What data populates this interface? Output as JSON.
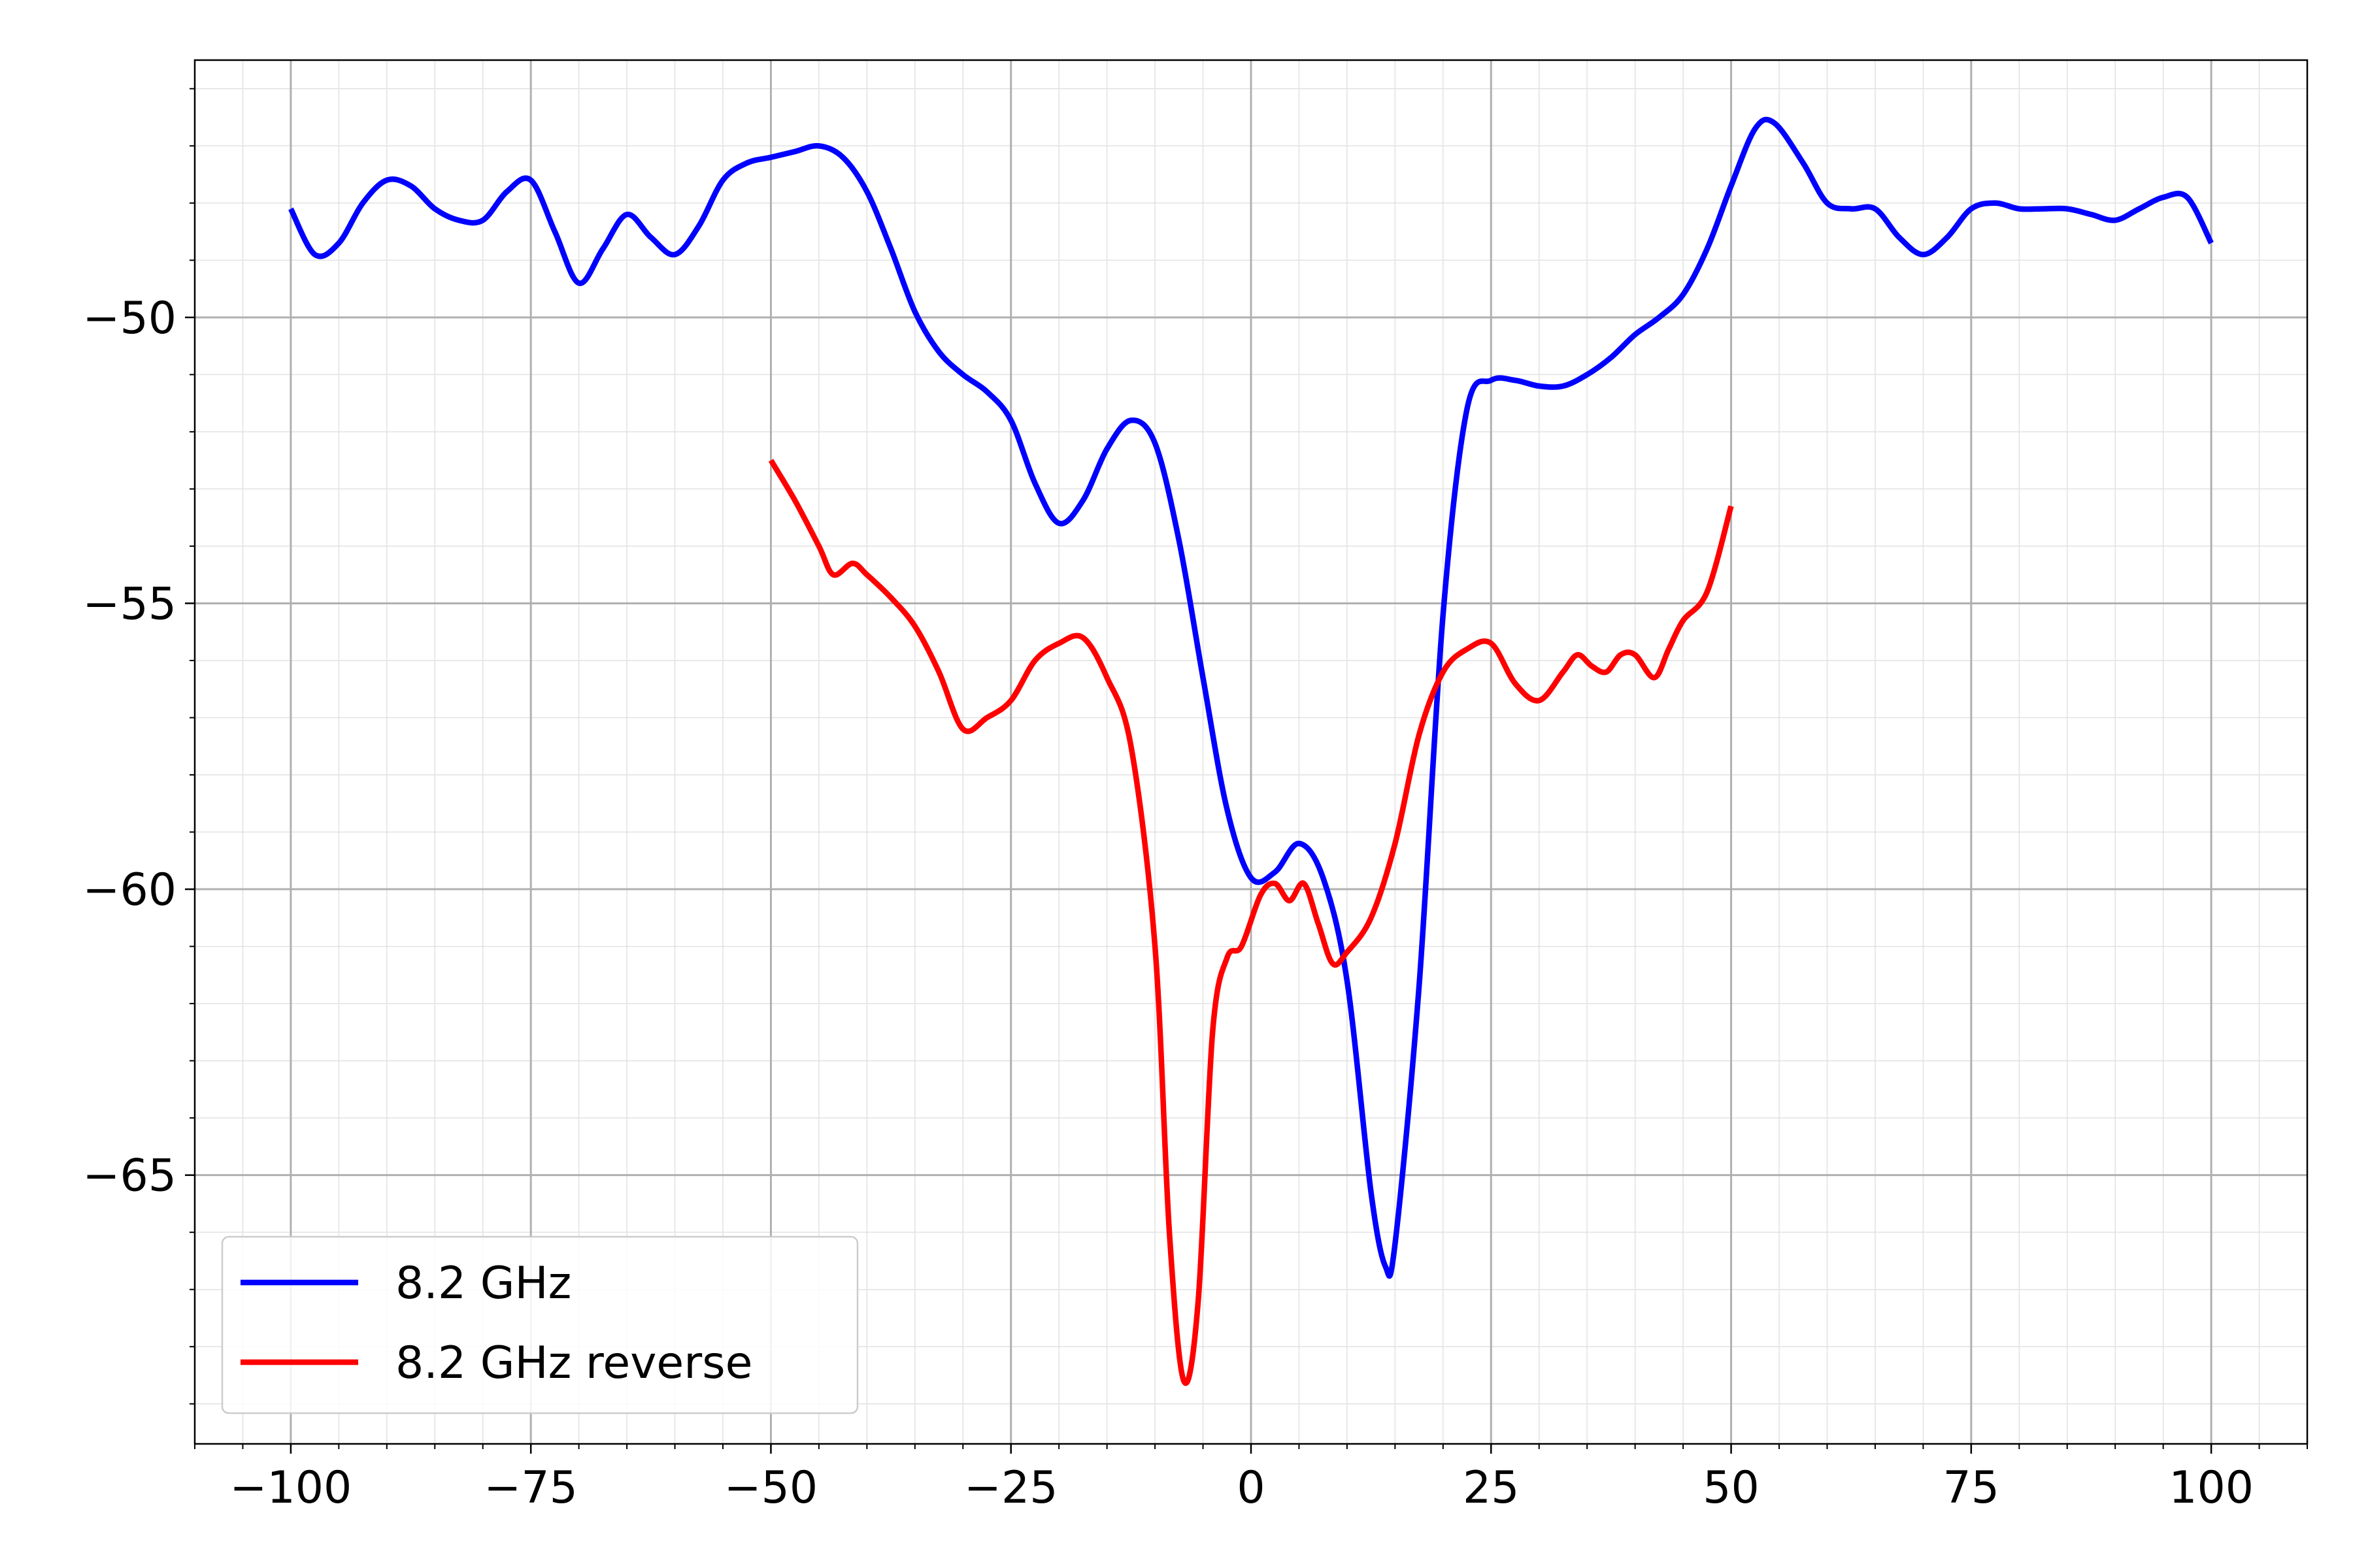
{
  "chart_data": {
    "type": "line",
    "title": "",
    "xlabel": "",
    "ylabel": "",
    "xlim": [
      -110,
      110
    ],
    "ylim": [
      -69.7,
      -45.5
    ],
    "x_ticks": [
      -100,
      -75,
      -50,
      -25,
      0,
      25,
      50,
      75,
      100
    ],
    "x_tick_labels": [
      "−100",
      "−75",
      "−50",
      "−25",
      "0",
      "25",
      "50",
      "75",
      "100"
    ],
    "y_ticks": [
      -50,
      -55,
      -60,
      -65
    ],
    "y_tick_labels": [
      "−50",
      "−55",
      "−60",
      "−65"
    ],
    "grid": {
      "major": true,
      "minor": true
    },
    "legend_position": "lower-left",
    "series": [
      {
        "name": "8.2 GHz",
        "color": "#0000ff",
        "points": [
          [
            -100,
            -48.1
          ],
          [
            -97.5,
            -48.9
          ],
          [
            -95,
            -48.7
          ],
          [
            -92.5,
            -48.0
          ],
          [
            -90,
            -47.6
          ],
          [
            -87.5,
            -47.7
          ],
          [
            -85,
            -48.1
          ],
          [
            -82.5,
            -48.3
          ],
          [
            -80,
            -48.3
          ],
          [
            -77.5,
            -47.8
          ],
          [
            -75,
            -47.6
          ],
          [
            -72.5,
            -48.5
          ],
          [
            -70,
            -49.4
          ],
          [
            -67.5,
            -48.8
          ],
          [
            -65,
            -48.2
          ],
          [
            -62.5,
            -48.6
          ],
          [
            -60,
            -48.9
          ],
          [
            -57.5,
            -48.4
          ],
          [
            -55,
            -47.6
          ],
          [
            -52.5,
            -47.3
          ],
          [
            -50,
            -47.2
          ],
          [
            -47.5,
            -47.1
          ],
          [
            -45,
            -47.0
          ],
          [
            -42.5,
            -47.2
          ],
          [
            -40,
            -47.8
          ],
          [
            -37.5,
            -48.8
          ],
          [
            -35,
            -49.9
          ],
          [
            -32.5,
            -50.6
          ],
          [
            -30,
            -51.0
          ],
          [
            -27.5,
            -51.3
          ],
          [
            -25,
            -51.8
          ],
          [
            -22.5,
            -52.9
          ],
          [
            -20,
            -53.6
          ],
          [
            -17.5,
            -53.2
          ],
          [
            -15,
            -52.3
          ],
          [
            -12.5,
            -51.8
          ],
          [
            -10,
            -52.2
          ],
          [
            -7.5,
            -53.9
          ],
          [
            -5,
            -56.3
          ],
          [
            -2.5,
            -58.6
          ],
          [
            0,
            -59.8
          ],
          [
            2.5,
            -59.7
          ],
          [
            5,
            -59.2
          ],
          [
            7.5,
            -59.8
          ],
          [
            10,
            -61.6
          ],
          [
            12.5,
            -65.3
          ],
          [
            14,
            -66.6
          ],
          [
            15,
            -66.2
          ],
          [
            17.5,
            -61.7
          ],
          [
            20,
            -55.2
          ],
          [
            22.5,
            -51.6
          ],
          [
            25,
            -51.1
          ],
          [
            27.5,
            -51.1
          ],
          [
            30,
            -51.2
          ],
          [
            32.5,
            -51.2
          ],
          [
            35,
            -51.0
          ],
          [
            37.5,
            -50.7
          ],
          [
            40,
            -50.3
          ],
          [
            42.5,
            -50.0
          ],
          [
            45,
            -49.6
          ],
          [
            47.5,
            -48.8
          ],
          [
            50,
            -47.7
          ],
          [
            52.5,
            -46.7
          ],
          [
            54.5,
            -46.6
          ],
          [
            57.5,
            -47.3
          ],
          [
            60,
            -48.0
          ],
          [
            62.5,
            -48.1
          ],
          [
            65,
            -48.1
          ],
          [
            67.5,
            -48.6
          ],
          [
            70,
            -48.9
          ],
          [
            72.5,
            -48.6
          ],
          [
            75,
            -48.1
          ],
          [
            77.5,
            -48.0
          ],
          [
            80,
            -48.1
          ],
          [
            82.5,
            -48.1
          ],
          [
            85,
            -48.1
          ],
          [
            87.5,
            -48.2
          ],
          [
            90,
            -48.3
          ],
          [
            92.5,
            -48.1
          ],
          [
            95,
            -47.9
          ],
          [
            97.5,
            -47.9
          ],
          [
            100,
            -48.7
          ]
        ]
      },
      {
        "name": "8.2 GHz reverse",
        "color": "#ff0000",
        "points": [
          [
            -50,
            -52.5
          ],
          [
            -47.5,
            -53.2
          ],
          [
            -45,
            -54.0
          ],
          [
            -43.5,
            -54.5
          ],
          [
            -41.5,
            -54.3
          ],
          [
            -40,
            -54.5
          ],
          [
            -37.5,
            -54.9
          ],
          [
            -35,
            -55.4
          ],
          [
            -32.5,
            -56.2
          ],
          [
            -30,
            -57.2
          ],
          [
            -27.5,
            -57.0
          ],
          [
            -25,
            -56.7
          ],
          [
            -22.5,
            -56.0
          ],
          [
            -20,
            -55.7
          ],
          [
            -17.5,
            -55.6
          ],
          [
            -15,
            -56.3
          ],
          [
            -12.5,
            -57.5
          ],
          [
            -10,
            -61.0
          ],
          [
            -8.5,
            -66.0
          ],
          [
            -7,
            -68.6
          ],
          [
            -5.5,
            -67.2
          ],
          [
            -4,
            -62.5
          ],
          [
            -2.5,
            -61.2
          ],
          [
            -1,
            -61.0
          ],
          [
            1,
            -60.1
          ],
          [
            2.5,
            -59.9
          ],
          [
            4,
            -60.2
          ],
          [
            5.5,
            -59.9
          ],
          [
            7,
            -60.6
          ],
          [
            8.5,
            -61.3
          ],
          [
            10,
            -61.1
          ],
          [
            12.5,
            -60.5
          ],
          [
            15,
            -59.2
          ],
          [
            17.5,
            -57.3
          ],
          [
            20,
            -56.2
          ],
          [
            22.5,
            -55.8
          ],
          [
            25,
            -55.7
          ],
          [
            27.5,
            -56.4
          ],
          [
            30,
            -56.7
          ],
          [
            32.5,
            -56.2
          ],
          [
            34,
            -55.9
          ],
          [
            35.5,
            -56.1
          ],
          [
            37,
            -56.2
          ],
          [
            38.5,
            -55.9
          ],
          [
            40,
            -55.9
          ],
          [
            42,
            -56.3
          ],
          [
            43.5,
            -55.8
          ],
          [
            45,
            -55.3
          ],
          [
            47.5,
            -54.8
          ],
          [
            50,
            -53.3
          ]
        ]
      }
    ]
  }
}
